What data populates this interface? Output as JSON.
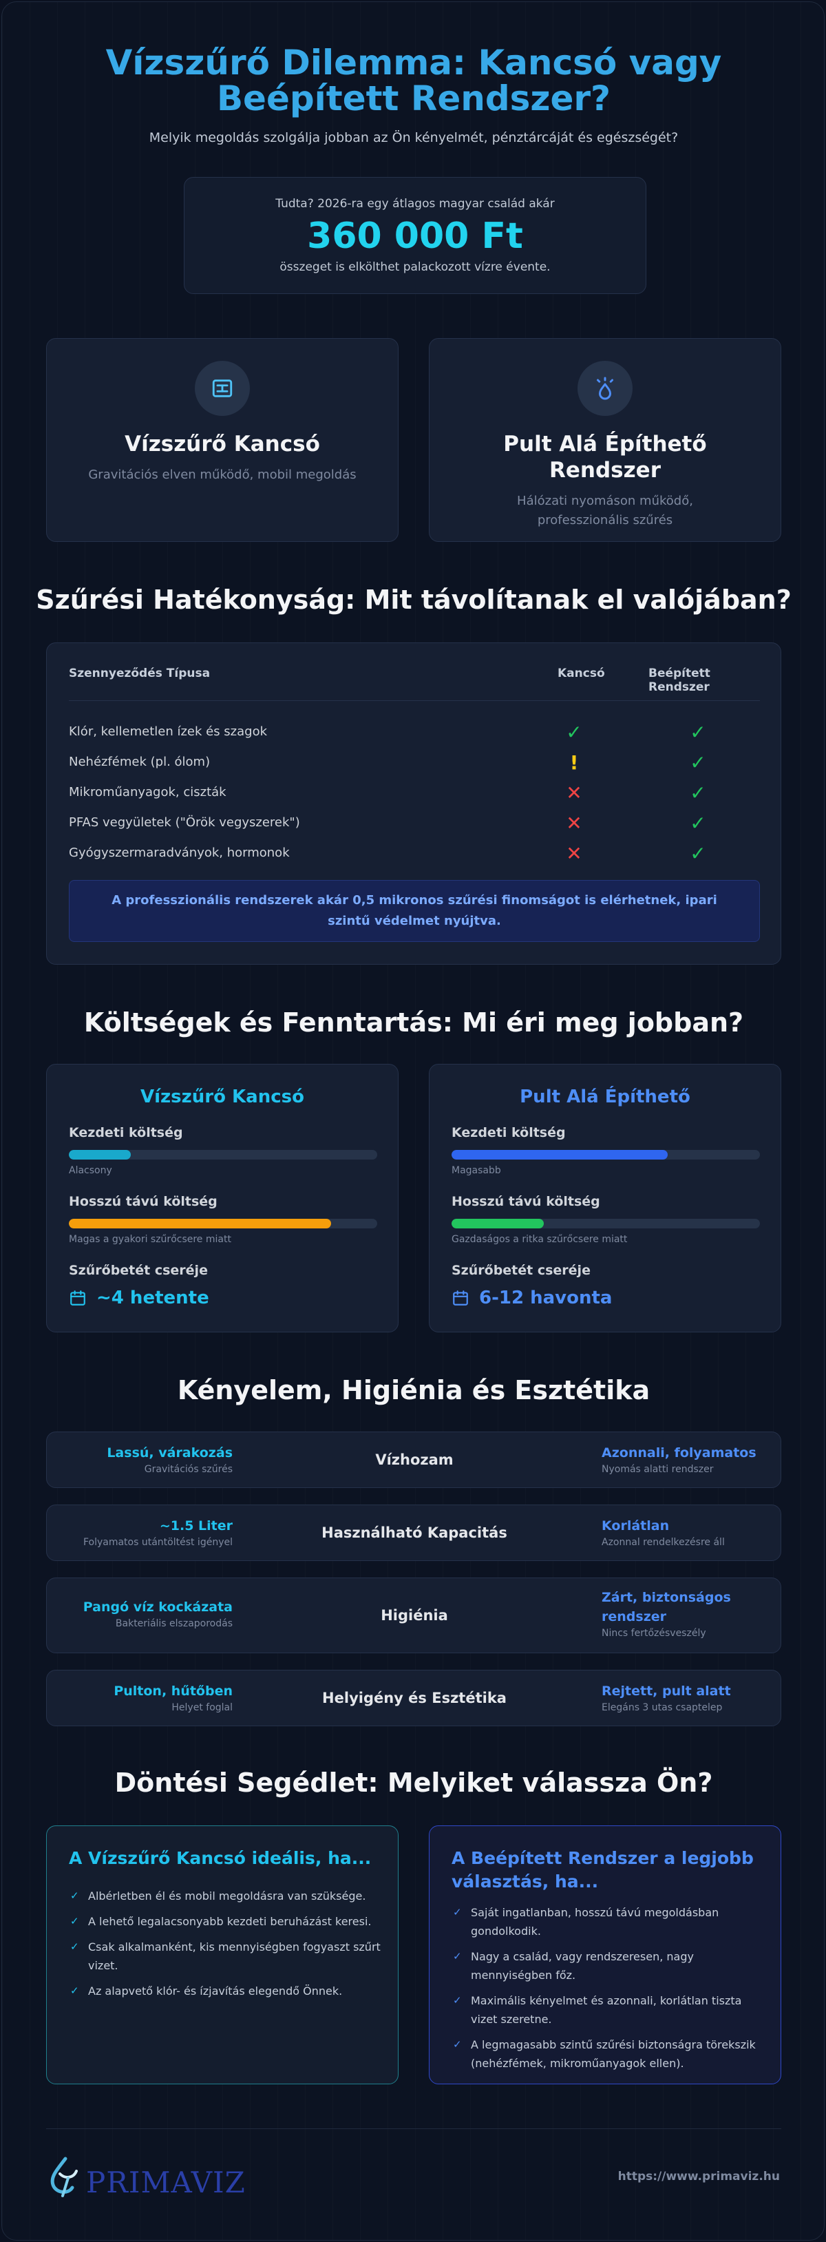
{
  "hero": {
    "title_line1": "Vízszűrő Dilemma: Kancsó vagy",
    "title_line2": "Beépített Rendszer?",
    "subtitle": "Melyik megoldás szolgálja jobban az Ön kényelmét, pénztárcáját és egészségét?"
  },
  "fact": {
    "pre": "Tudta? 2026-ra egy átlagos magyar család akár",
    "amount": "360 000 Ft",
    "post": "összeget is elkölthet palackozott vízre évente."
  },
  "products": [
    {
      "title": "Vízszűrő Kancsó",
      "desc": "Gravitációs elven működő, mobil megoldás",
      "icon": "pitcher-icon"
    },
    {
      "title": "Pult Alá Építhető Rendszer",
      "desc": "Hálózati nyomáson működő, professzionális szűrés",
      "icon": "faucet-drop-icon"
    }
  ],
  "filtration": {
    "title": "Szűrési Hatékonyság: Mit távolítanak el valójában?",
    "headers": {
      "type": "Szennyeződés Típusa",
      "pitcher": "Kancsó",
      "system": "Beépített Rendszer"
    },
    "rows": [
      {
        "label": "Klór, kellemetlen ízek és szagok",
        "pitcher": "✓",
        "system": "✓"
      },
      {
        "label": "Nehézfémek (pl. ólom)",
        "pitcher": "!",
        "system": "✓"
      },
      {
        "label": "Mikroműanyagok, ciszták",
        "pitcher": "✕",
        "system": "✓"
      },
      {
        "label": "PFAS vegyületek (\"Örök vegyszerek\")",
        "pitcher": "✕",
        "system": "✓"
      },
      {
        "label": "Gyógyszermaradványok, hormonok",
        "pitcher": "✕",
        "system": "✓"
      }
    ],
    "note": "A professzionális rendszerek akár 0,5 mikronos szűrési finomságot is elérhetnek, ipari szintű védelmet nyújtva."
  },
  "costs": {
    "title": "Költségek és Fenntartás: Mi éri meg jobban?",
    "labels": {
      "initial": "Kezdeti költség",
      "longterm": "Hosszú távú költség",
      "replace": "Szűrőbetét cseréje"
    },
    "pitcher": {
      "title": "Vízszűrő Kancsó",
      "initial_note": "Alacsony",
      "initial_level": 0.2,
      "longterm_note": "Magas a gyakori szűrőcsere miatt",
      "longterm_level": 0.85,
      "replace": "~4 hetente",
      "color_initial": "#19a9cb",
      "color_longterm": "#f59e0b"
    },
    "system": {
      "title": "Pult Alá Építhető",
      "initial_note": "Magasabb",
      "initial_level": 0.7,
      "longterm_note": "Gazdaságos a ritka szűrőcsere miatt",
      "longterm_level": 0.3,
      "replace": "6-12 havonta",
      "color_initial": "#2f66f0",
      "color_longterm": "#22c55e"
    }
  },
  "comfort": {
    "title": "Kényelem, Higiénia és Esztétika",
    "rows": [
      {
        "left_value": "Lassú, várakozás",
        "left_sub": "Gravitációs szűrés",
        "center": "Vízhozam",
        "right_value": "Azonnali, folyamatos",
        "right_sub": "Nyomás alatti rendszer"
      },
      {
        "left_value": "~1.5 Liter",
        "left_sub": "Folyamatos utántöltést igényel",
        "center": "Használható Kapacitás",
        "right_value": "Korlátlan",
        "right_sub": "Azonnal rendelkezésre áll"
      },
      {
        "left_value": "Pangó víz kockázata",
        "left_sub": "Bakteriális elszaporodás",
        "center": "Higiénia",
        "right_value": "Zárt, biztonságos rendszer",
        "right_sub": "Nincs fertőzésveszély"
      },
      {
        "left_value": "Pulton, hűtőben",
        "left_sub": "Helyet foglal",
        "center": "Helyigény és Esztétika",
        "right_value": "Rejtett, pult alatt",
        "right_sub": "Elegáns 3 utas csaptelep"
      }
    ]
  },
  "decision": {
    "title": "Döntési Segédlet: Melyiket válassza Ön?",
    "pitcher": {
      "title": "A Vízszűrő Kancsó ideális, ha...",
      "items": [
        "Albérletben él és mobil megoldásra van szüksége.",
        "A lehető legalacsonyabb kezdeti beruházást keresi.",
        "Csak alkalmanként, kis mennyiségben fogyaszt szűrt vizet.",
        "Az alapvető klór- és ízjavítás elegendő Önnek."
      ]
    },
    "system": {
      "title": "A Beépített Rendszer a legjobb választás, ha...",
      "items": [
        "Saját ingatlanban, hosszú távú megoldásban gondolkodik.",
        "Nagy a család, vagy rendszeresen, nagy mennyiségben főz.",
        "Maximális kényelmet és azonnali, korlátlan tiszta vizet szeretne.",
        "A legmagasabb szintű szűrési biztonságra törekszik (nehézfémek, mikroműanyagok ellen)."
      ]
    }
  },
  "footer": {
    "logo": "PRIMAVIZ",
    "site": "https://www.primaviz.hu"
  }
}
